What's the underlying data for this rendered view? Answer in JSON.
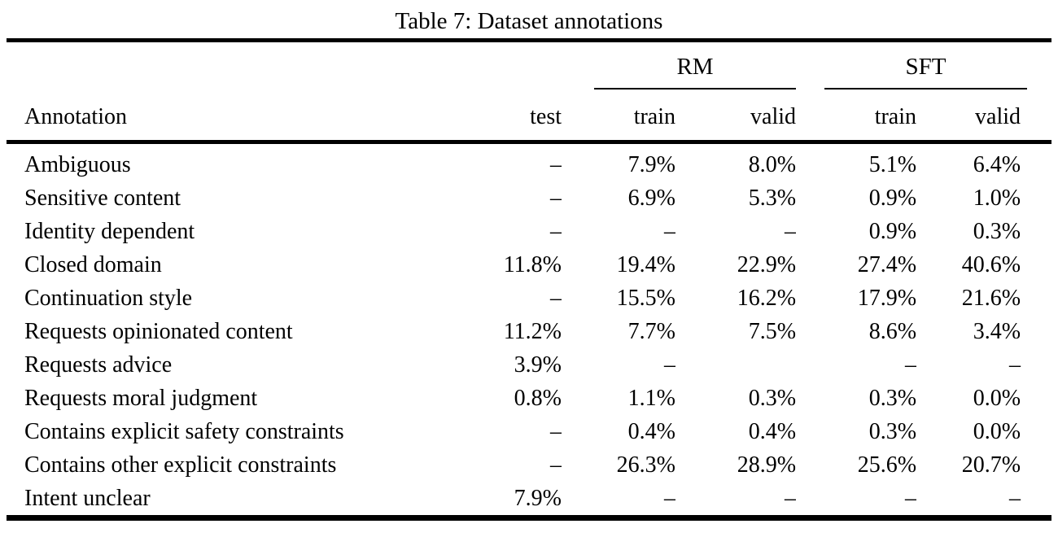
{
  "page": {
    "background_color": "#ffffff",
    "text_color": "#000000"
  },
  "title": "Table 7: Dataset annotations",
  "table": {
    "groups": [
      {
        "label": "RM"
      },
      {
        "label": "SFT"
      }
    ],
    "columns": [
      "Annotation",
      "test",
      "train",
      "valid",
      "train",
      "valid"
    ],
    "rows": [
      [
        "Ambiguous",
        "–",
        "7.9%",
        "8.0%",
        "5.1%",
        "6.4%"
      ],
      [
        "Sensitive content",
        "–",
        "6.9%",
        "5.3%",
        "0.9%",
        "1.0%"
      ],
      [
        "Identity dependent",
        "–",
        "–",
        "–",
        "0.9%",
        "0.3%"
      ],
      [
        "Closed domain",
        "11.8%",
        "19.4%",
        "22.9%",
        "27.4%",
        "40.6%"
      ],
      [
        "Continuation style",
        "–",
        "15.5%",
        "16.2%",
        "17.9%",
        "21.6%"
      ],
      [
        "Requests opinionated content",
        "11.2%",
        "7.7%",
        "7.5%",
        "8.6%",
        "3.4%"
      ],
      [
        "Requests advice",
        "3.9%",
        "–",
        "",
        "–",
        "–"
      ],
      [
        "Requests moral judgment",
        "0.8%",
        "1.1%",
        "0.3%",
        "0.3%",
        "0.0%"
      ],
      [
        "Contains explicit safety constraints",
        "–",
        "0.4%",
        "0.4%",
        "0.3%",
        "0.0%"
      ],
      [
        "Contains other explicit constraints",
        "–",
        "26.3%",
        "28.9%",
        "25.6%",
        "20.7%"
      ],
      [
        "Intent unclear",
        "7.9%",
        "–",
        "–",
        "–",
        "–"
      ]
    ]
  }
}
